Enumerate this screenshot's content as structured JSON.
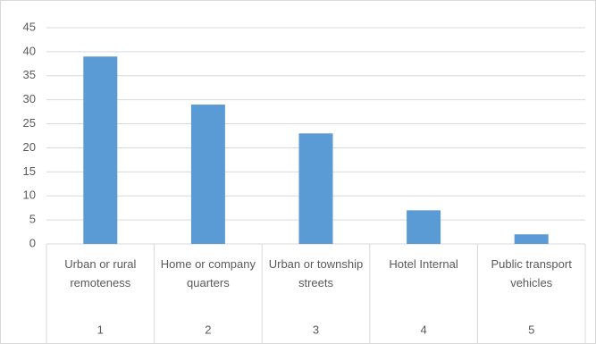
{
  "chart_data": {
    "type": "bar",
    "categories": [
      "Urban or rural remoteness",
      "Home or company quarters",
      "Urban or township streets",
      "Hotel Internal",
      "Public transport vehicles"
    ],
    "category_numbers": [
      1,
      2,
      3,
      4,
      5
    ],
    "values": [
      39,
      29,
      23,
      7,
      2
    ],
    "color": "#5b9bd5",
    "ylim": [
      0,
      45
    ],
    "yticks": [
      0,
      5,
      10,
      15,
      20,
      25,
      30,
      35,
      40,
      45
    ],
    "grid": true
  }
}
